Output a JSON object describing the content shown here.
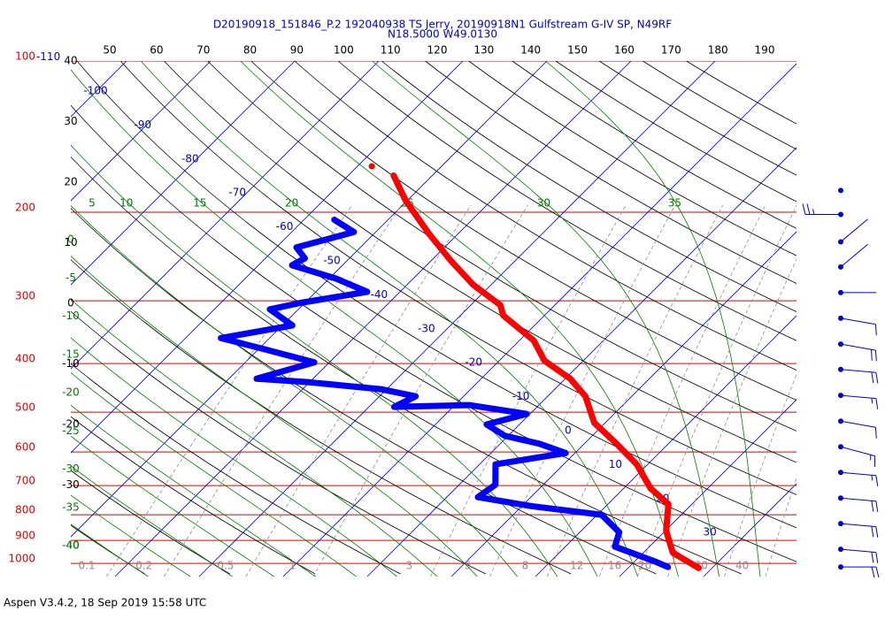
{
  "chart_data": {
    "type": "skew-t",
    "title": "D20190918_151846_P.2 192040938 TS Jerry, 20190918N1 Gulfstream G-IV SP, N49RF",
    "subtitle": "N18.5000 W49.0130",
    "log_scale": true,
    "ylim": [
      100,
      1062
    ],
    "yticks": [
      100,
      200,
      300,
      400,
      500,
      600,
      700,
      800,
      900,
      1000
    ],
    "isotherm_ticks": [
      -110,
      -100,
      -90,
      -80,
      -70,
      -60,
      -50,
      -40,
      -30,
      -20,
      -10,
      0,
      10,
      20,
      30
    ],
    "dry_adiabat_top_ticks": [
      50,
      60,
      70,
      80,
      90,
      100,
      110,
      120,
      130,
      140,
      150,
      160,
      170,
      180,
      190
    ],
    "dry_adiabat_left_ticks": [
      40,
      30,
      20,
      10,
      0,
      -10,
      -20,
      -30,
      -40
    ],
    "moist_adiabat_top_ticks": [
      5,
      10,
      15,
      20,
      25,
      30,
      35
    ],
    "moist_adiabat_left_ticks": [
      0,
      -5,
      -10,
      -15,
      -20,
      -25,
      -30,
      -35,
      -40
    ],
    "mixing_ratio_ticks": [
      0.1,
      0.2,
      0.5,
      1,
      3,
      5,
      8,
      12,
      16,
      20,
      30,
      40
    ],
    "colors": {
      "pressure": "#e00000",
      "isotherm": "#0000cc",
      "dry_adiabat": "#000000",
      "moist_adiabat": "#007a00",
      "mixing_ratio": "#8c8c8c"
    },
    "series": [
      {
        "color": "#ff0000",
        "pressure": [
          162,
          null,
          169,
          190,
          221,
          250,
          279,
          306,
          321,
          360,
          395,
          429,
          465,
          525,
          574,
          635,
          709,
          762,
          861,
          952,
          1021
        ],
        "values": [
          -58.3,
          null,
          -54.6,
          -50.1,
          -43.4,
          -37.6,
          -32.1,
          -26.5,
          -24.9,
          -18.3,
          -14.6,
          -9.4,
          -5.5,
          -1.3,
          3.5,
          8.7,
          13.2,
          17.2,
          20.1,
          23.5,
          28.4
        ]
      },
      {
        "color": "#0000ff",
        "pressure": [
          207,
          219,
          235,
          247,
          255,
          271,
          288,
          303,
          312,
          336,
          356,
          375,
          398,
          429,
          436,
          450,
          465,
          488,
          484,
          504,
          529,
          557,
          578,
          603,
          635,
          697,
          738,
          769,
          800,
          867,
          926,
          991,
          1016
        ],
        "values": [
          -56.4,
          -52.6,
          -57.6,
          -55.3,
          -56,
          -49.2,
          -43.9,
          -50.5,
          -53.4,
          -48.8,
          -55.8,
          -49.2,
          -41.8,
          -46.7,
          -40,
          -30.7,
          -25.7,
          -27,
          -18.3,
          -10.4,
          -13.9,
          -10.4,
          -5.3,
          -1.1,
          -8.1,
          -5.7,
          -6.3,
          1.1,
          10.5,
          14.7,
          15.9,
          22.4,
          24.6
        ]
      }
    ],
    "wind": {
      "color": "#0000cc",
      "pressure": [
        181,
        202,
        229,
        257,
        289,
        325,
        366,
        411,
        463,
        521,
        586,
        659,
        741,
        833,
        937,
        1016
      ],
      "direction": [
        0,
        270,
        50,
        50,
        90,
        100,
        100,
        95,
        95,
        100,
        105,
        95,
        95,
        95,
        95,
        90
      ],
      "speed": [
        0,
        25,
        3,
        3,
        3,
        10,
        20,
        20,
        15,
        10,
        15,
        15,
        20,
        20,
        20,
        20
      ]
    }
  },
  "footer": "Aspen V3.4.2, 18 Sep 2019  15:58 UTC"
}
